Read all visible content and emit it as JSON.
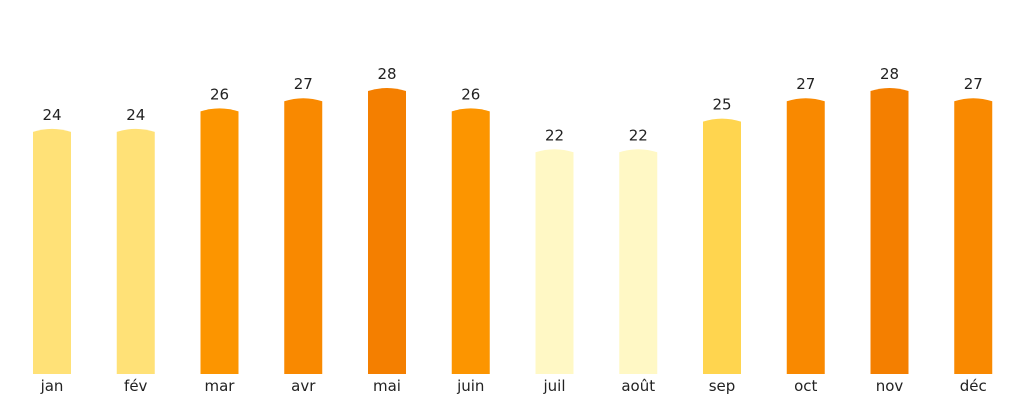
{
  "chart_data": {
    "type": "bar",
    "title": "",
    "xlabel": "",
    "ylabel": "",
    "ylim": [
      0,
      28
    ],
    "grid": false,
    "legend": "none",
    "categories": [
      "jan",
      "fév",
      "mar",
      "avr",
      "mai",
      "juin",
      "juil",
      "août",
      "sep",
      "oct",
      "nov",
      "déc"
    ],
    "values": [
      24,
      24,
      26,
      27,
      28,
      26,
      22,
      22,
      25,
      27,
      28,
      27
    ],
    "colors": [
      "#FFE177",
      "#FFE177",
      "#FC9500",
      "#F98900",
      "#F47F00",
      "#FC9500",
      "#FFF8C5",
      "#FFF8C5",
      "#FFD54F",
      "#F98900",
      "#F47F00",
      "#F98900"
    ]
  }
}
